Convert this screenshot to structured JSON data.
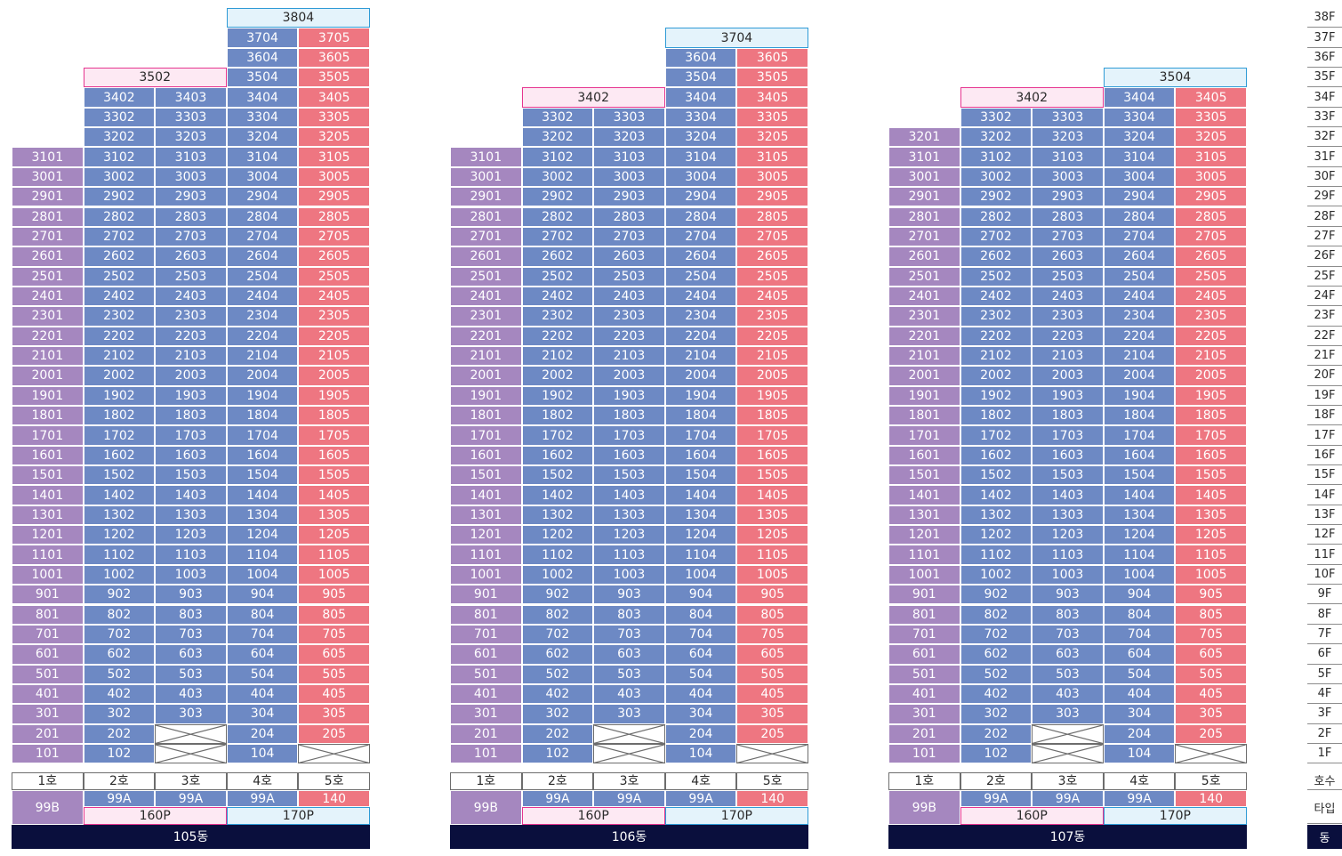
{
  "legend": {
    "floors": [
      "38F",
      "37F",
      "36F",
      "35F",
      "34F",
      "33F",
      "32F",
      "31F",
      "30F",
      "29F",
      "28F",
      "27F",
      "26F",
      "25F",
      "24F",
      "23F",
      "22F",
      "21F",
      "20F",
      "19F",
      "18F",
      "17F",
      "16F",
      "15F",
      "14F",
      "13F",
      "12F",
      "11F",
      "10F",
      "9F",
      "8F",
      "7F",
      "6F",
      "5F",
      "4F",
      "3F",
      "2F",
      "1F"
    ],
    "unit_label": "호수",
    "type_label": "타입",
    "building_label": "동"
  },
  "colors": {
    "line1": "#a587bf",
    "line_blue": "#6d89c4",
    "line5": "#ee7681",
    "penthouse_160": "#e6358f",
    "penthouse_170": "#2f9bd6",
    "building_bar": "#0a0f3d"
  },
  "buildings": [
    {
      "name": "105동",
      "units_header": [
        "1호",
        "2호",
        "3호",
        "4호",
        "5호"
      ],
      "types": [
        "99B",
        "99A",
        "99A",
        "99A",
        "140"
      ],
      "penthouse_types": [
        "160P",
        "170P"
      ],
      "line_tops": [
        31,
        34,
        34,
        37,
        37
      ],
      "missing": [
        "201:2",
        "101:2",
        "101:4"
      ],
      "penthouses": [
        {
          "label": "3804",
          "floor": 38,
          "col": 3,
          "span": 2,
          "kind": "blue"
        },
        {
          "label": "3502",
          "floor": 35,
          "col": 1,
          "span": 2,
          "kind": "pink"
        }
      ]
    },
    {
      "name": "106동",
      "units_header": [
        "1호",
        "2호",
        "3호",
        "4호",
        "5호"
      ],
      "types": [
        "99B",
        "99A",
        "99A",
        "99A",
        "140"
      ],
      "penthouse_types": [
        "160P",
        "170P"
      ],
      "line_tops": [
        31,
        33,
        33,
        36,
        36
      ],
      "missing": [
        "201:2",
        "101:2",
        "101:4"
      ],
      "penthouses": [
        {
          "label": "3704",
          "floor": 37,
          "col": 3,
          "span": 2,
          "kind": "blue"
        },
        {
          "label": "3402",
          "floor": 34,
          "col": 1,
          "span": 2,
          "kind": "pink"
        }
      ]
    },
    {
      "name": "107동",
      "units_header": [
        "1호",
        "2호",
        "3호",
        "4호",
        "5호"
      ],
      "types": [
        "99B",
        "99A",
        "99A",
        "99A",
        "140"
      ],
      "penthouse_types": [
        "160P",
        "170P"
      ],
      "line_tops": [
        32,
        33,
        33,
        34,
        34
      ],
      "missing": [
        "201:2",
        "101:2",
        "101:4"
      ],
      "penthouses": [
        {
          "label": "3504",
          "floor": 35,
          "col": 3,
          "span": 2,
          "kind": "blue"
        },
        {
          "label": "3402",
          "floor": 34,
          "col": 1,
          "span": 2,
          "kind": "pink"
        }
      ]
    }
  ]
}
